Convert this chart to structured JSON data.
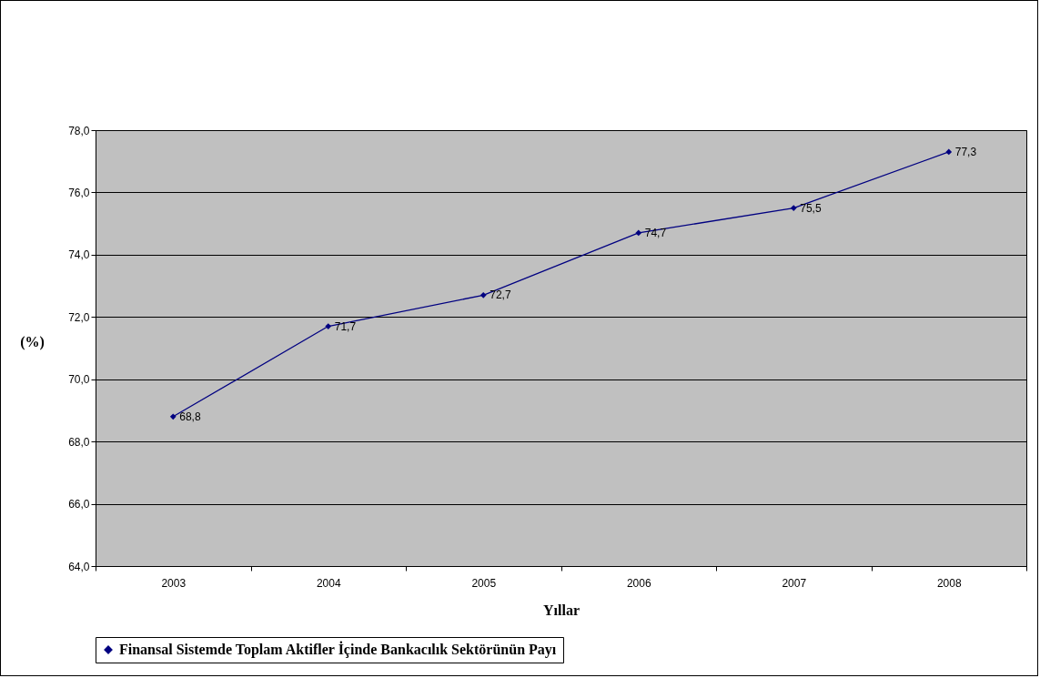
{
  "chart_data": {
    "type": "line",
    "xlabel": "Yıllar",
    "ylabel": "(%)",
    "categories": [
      "2003",
      "2004",
      "2005",
      "2006",
      "2007",
      "2008"
    ],
    "series": [
      {
        "name": "Finansal Sistemde Toplam Aktifler İçinde Bankacılık Sektörünün Payı",
        "color": "#000080",
        "values": [
          68.8,
          71.7,
          72.7,
          74.7,
          75.5,
          77.3
        ],
        "value_labels": [
          "68,8",
          "71,7",
          "72,7",
          "74,7",
          "75,5",
          "77,3"
        ]
      }
    ],
    "ylim": [
      64,
      78
    ],
    "yticks": [
      {
        "value": 64,
        "label": "64,0"
      },
      {
        "value": 66,
        "label": "66,0"
      },
      {
        "value": 68,
        "label": "68,0"
      },
      {
        "value": 70,
        "label": "70,0"
      },
      {
        "value": 72,
        "label": "72,0"
      },
      {
        "value": 74,
        "label": "74,0"
      },
      {
        "value": 76,
        "label": "76,0"
      },
      {
        "value": 78,
        "label": "78,0"
      }
    ],
    "grid": "y",
    "legend": "bottom",
    "marker": "diamond",
    "line_style": "solid"
  }
}
